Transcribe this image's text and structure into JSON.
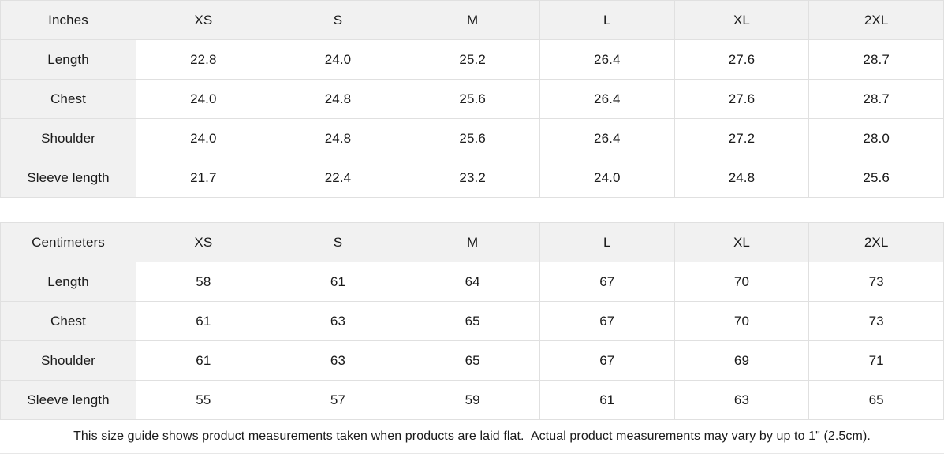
{
  "colors": {
    "header_bg": "#f1f1f1",
    "cell_bg": "#ffffff",
    "border": "#e0e0e0",
    "text": "#1a1a1a"
  },
  "tables": [
    {
      "unit_label": "Inches",
      "columns": [
        "XS",
        "S",
        "M",
        "L",
        "XL",
        "2XL"
      ],
      "rows": [
        {
          "label": "Length",
          "values": [
            "22.8",
            "24.0",
            "25.2",
            "26.4",
            "27.6",
            "28.7"
          ]
        },
        {
          "label": "Chest",
          "values": [
            "24.0",
            "24.8",
            "25.6",
            "26.4",
            "27.6",
            "28.7"
          ]
        },
        {
          "label": "Shoulder",
          "values": [
            "24.0",
            "24.8",
            "25.6",
            "26.4",
            "27.2",
            "28.0"
          ]
        },
        {
          "label": "Sleeve length",
          "values": [
            "21.7",
            "22.4",
            "23.2",
            "24.0",
            "24.8",
            "25.6"
          ]
        }
      ]
    },
    {
      "unit_label": "Centimeters",
      "columns": [
        "XS",
        "S",
        "M",
        "L",
        "XL",
        "2XL"
      ],
      "rows": [
        {
          "label": "Length",
          "values": [
            "58",
            "61",
            "64",
            "67",
            "70",
            "73"
          ]
        },
        {
          "label": "Chest",
          "values": [
            "61",
            "63",
            "65",
            "67",
            "70",
            "73"
          ]
        },
        {
          "label": "Shoulder",
          "values": [
            "61",
            "63",
            "65",
            "67",
            "69",
            "71"
          ]
        },
        {
          "label": "Sleeve length",
          "values": [
            "55",
            "57",
            "59",
            "61",
            "63",
            "65"
          ]
        }
      ]
    }
  ],
  "footer_note": "This size guide shows product measurements taken when products are laid flat.  Actual product measurements may vary by up to 1\" (2.5cm)."
}
